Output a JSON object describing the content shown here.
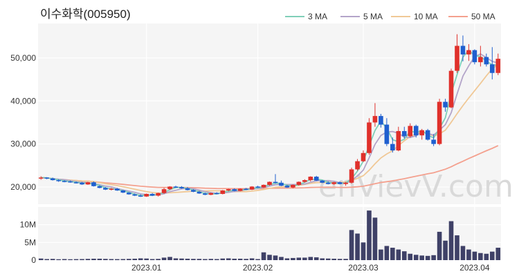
{
  "chart_data": {
    "type": "candlestick",
    "title": "이수화학(005950)",
    "watermark": "enVievV.com",
    "legend": {
      "placement": "top-right",
      "items": [
        {
          "key": "ma3",
          "label": "3 MA",
          "color": "#7fcfb8"
        },
        {
          "key": "ma5",
          "label": "5 MA",
          "color": "#b3a4c9"
        },
        {
          "key": "ma10",
          "label": "10 MA",
          "color": "#f0c896"
        },
        {
          "key": "ma50",
          "label": "50 MA",
          "color": "#f4a08e"
        }
      ]
    },
    "colors": {
      "up": "#e0302b",
      "down": "#1f5fcf",
      "volume": "#3f4167",
      "plot_bg": "#f5f5f5",
      "grid": "#ffffff"
    },
    "price_axis": {
      "min": 16000,
      "max": 58000,
      "ticks": [
        20000,
        30000,
        40000,
        50000
      ],
      "labels": [
        "20,000",
        "30,000",
        "40,000",
        "50,000"
      ]
    },
    "volume_axis": {
      "min": 0,
      "max": 15000000,
      "ticks": [
        0,
        5000000,
        10000000
      ],
      "labels": [
        "0",
        "5M",
        "10M"
      ]
    },
    "x_axis": {
      "labels": [
        {
          "index": 18,
          "text": "2023.01"
        },
        {
          "index": 37,
          "text": "2023.02"
        },
        {
          "index": 55,
          "text": "2023.03"
        },
        {
          "index": 74,
          "text": "2023.04"
        }
      ]
    },
    "ohlcv": [
      [
        22000,
        22500,
        21700,
        22200,
        450000
      ],
      [
        22200,
        22300,
        21800,
        22000,
        300000
      ],
      [
        22000,
        22200,
        21500,
        21600,
        350000
      ],
      [
        21600,
        21800,
        21200,
        21400,
        250000
      ],
      [
        21400,
        21600,
        21100,
        21300,
        300000
      ],
      [
        21300,
        21500,
        21000,
        21100,
        250000
      ],
      [
        21100,
        21300,
        20800,
        21000,
        280000
      ],
      [
        21000,
        21200,
        20500,
        20600,
        300000
      ],
      [
        20600,
        21200,
        20500,
        21100,
        350000
      ],
      [
        21100,
        21300,
        20100,
        20200,
        400000
      ],
      [
        20200,
        20400,
        19700,
        19800,
        400000
      ],
      [
        19800,
        20000,
        19300,
        19400,
        350000
      ],
      [
        19400,
        19800,
        19200,
        19600,
        300000
      ],
      [
        19600,
        19800,
        19100,
        19200,
        280000
      ],
      [
        19200,
        19300,
        18600,
        18700,
        300000
      ],
      [
        18700,
        18800,
        18200,
        18300,
        350000
      ],
      [
        18300,
        18500,
        17900,
        18000,
        400000
      ],
      [
        18000,
        18300,
        17700,
        17800,
        500000
      ],
      [
        17800,
        18500,
        17700,
        18400,
        450000
      ],
      [
        18400,
        18600,
        17900,
        18000,
        300000
      ],
      [
        18000,
        18700,
        17800,
        18600,
        350000
      ],
      [
        18600,
        19800,
        18400,
        19500,
        700000
      ],
      [
        19500,
        20200,
        19300,
        20100,
        900000
      ],
      [
        20100,
        20300,
        19800,
        20000,
        500000
      ],
      [
        20000,
        20200,
        19600,
        19700,
        450000
      ],
      [
        19700,
        20000,
        19200,
        19300,
        400000
      ],
      [
        19300,
        19500,
        18800,
        18900,
        350000
      ],
      [
        18900,
        19100,
        18400,
        18500,
        350000
      ],
      [
        18500,
        18700,
        18100,
        18200,
        300000
      ],
      [
        18200,
        18700,
        18100,
        18600,
        350000
      ],
      [
        18600,
        18800,
        18300,
        18400,
        300000
      ],
      [
        18400,
        19300,
        18300,
        19200,
        450000
      ],
      [
        19200,
        19600,
        19000,
        19500,
        500000
      ],
      [
        19500,
        19700,
        19000,
        19100,
        400000
      ],
      [
        19100,
        19700,
        19000,
        19600,
        400000
      ],
      [
        19600,
        19800,
        19300,
        19400,
        350000
      ],
      [
        19400,
        20200,
        19300,
        20100,
        500000
      ],
      [
        20100,
        20300,
        19800,
        19900,
        300000
      ],
      [
        19900,
        20600,
        19800,
        20500,
        2200000
      ],
      [
        20500,
        21300,
        20300,
        21200,
        1500000
      ],
      [
        21200,
        23000,
        20800,
        21000,
        1300000
      ],
      [
        21000,
        21500,
        20200,
        20300,
        900000
      ],
      [
        20300,
        20500,
        19800,
        19900,
        500000
      ],
      [
        19900,
        20600,
        19700,
        20500,
        600000
      ],
      [
        20500,
        21300,
        20300,
        21200,
        700000
      ],
      [
        21200,
        21800,
        21000,
        21600,
        700000
      ],
      [
        21600,
        22500,
        21300,
        22400,
        900000
      ],
      [
        22400,
        22600,
        21400,
        21500,
        800000
      ],
      [
        21500,
        21600,
        20900,
        21000,
        500000
      ],
      [
        21000,
        21300,
        20600,
        20700,
        450000
      ],
      [
        20700,
        21200,
        20500,
        21100,
        400000
      ],
      [
        21100,
        21300,
        20600,
        20700,
        350000
      ],
      [
        20700,
        21200,
        20300,
        21000,
        350000
      ],
      [
        21000,
        24500,
        20800,
        24100,
        8500000
      ],
      [
        24100,
        26500,
        23800,
        26000,
        7500000
      ],
      [
        26000,
        28500,
        25800,
        27900,
        5000000
      ],
      [
        27900,
        36000,
        27500,
        35000,
        14000000
      ],
      [
        35000,
        39500,
        34000,
        36500,
        12000000
      ],
      [
        36500,
        37000,
        33800,
        34500,
        3000000
      ],
      [
        34500,
        36000,
        29500,
        30000,
        4000000
      ],
      [
        30000,
        31500,
        28000,
        28500,
        3500000
      ],
      [
        28500,
        34000,
        28300,
        33000,
        3000000
      ],
      [
        33000,
        34000,
        31300,
        31800,
        2500000
      ],
      [
        31800,
        34800,
        31500,
        34200,
        1800000
      ],
      [
        34200,
        34500,
        31500,
        32000,
        1500000
      ],
      [
        32000,
        33500,
        31000,
        33200,
        1300000
      ],
      [
        33200,
        33500,
        30800,
        31000,
        1200000
      ],
      [
        31000,
        32300,
        29500,
        30000,
        1400000
      ],
      [
        30000,
        40500,
        29700,
        39800,
        8000000
      ],
      [
        39800,
        40500,
        37500,
        38500,
        5500000
      ],
      [
        38500,
        47500,
        38300,
        47000,
        11000000
      ],
      [
        47000,
        55500,
        46500,
        52800,
        7000000
      ],
      [
        52800,
        55200,
        49200,
        50800,
        4000000
      ],
      [
        50800,
        53200,
        49300,
        51800,
        3000000
      ],
      [
        51800,
        52000,
        48500,
        49000,
        2400000
      ],
      [
        49000,
        52800,
        48000,
        50200,
        2000000
      ],
      [
        50200,
        51000,
        48000,
        48500,
        1800000
      ],
      [
        48500,
        52500,
        45000,
        46500,
        2400000
      ],
      [
        46500,
        51000,
        46000,
        49800,
        3500000
      ]
    ]
  }
}
